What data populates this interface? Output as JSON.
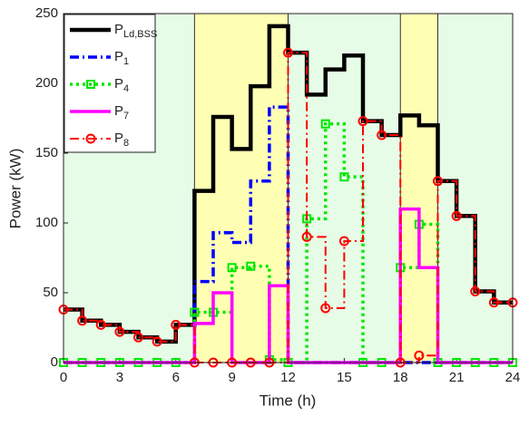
{
  "chart_data": {
    "type": "step",
    "xlabel": "Time (h)",
    "ylabel": "Power (kW)",
    "x": [
      0,
      1,
      2,
      3,
      4,
      5,
      6,
      7,
      8,
      9,
      10,
      11,
      12,
      13,
      14,
      15,
      16,
      17,
      18,
      19,
      20,
      21,
      22,
      23,
      24
    ],
    "xlim": [
      0,
      24
    ],
    "xticks": [
      0,
      3,
      6,
      9,
      12,
      15,
      18,
      21,
      24
    ],
    "ylim": [
      0,
      250
    ],
    "yticks": [
      0,
      50,
      100,
      150,
      200,
      250
    ],
    "background_color": "#e6fce6",
    "highlight_spans": [
      {
        "xlim": [
          7,
          12
        ],
        "color": "#ffffb4"
      },
      {
        "xlim": [
          18,
          20
        ],
        "color": "#ffffb4"
      }
    ],
    "legend": "upper left",
    "series": [
      {
        "name": "PLd,BSS",
        "color": "#000000",
        "linestyle": "solid",
        "width": 4.5,
        "marker": "none",
        "values": [
          38,
          30,
          27,
          22,
          18,
          15,
          27,
          123,
          176,
          153,
          198,
          241,
          222,
          192,
          210,
          220,
          173,
          163,
          177,
          170,
          130,
          105,
          51,
          43,
          43
        ]
      },
      {
        "name": "P1",
        "color": "#0000ff",
        "linestyle": "dashdot",
        "width": 3.5,
        "marker": "none",
        "values": [
          0,
          0,
          0,
          0,
          0,
          0,
          0,
          58,
          93,
          86,
          130,
          183,
          0,
          0,
          0,
          0,
          0,
          0,
          0,
          0,
          0,
          0,
          0,
          0,
          0
        ]
      },
      {
        "name": "P4",
        "color": "#00e600",
        "linestyle": "dotted",
        "width": 3.5,
        "marker": "square",
        "values": [
          0,
          0,
          0,
          0,
          0,
          0,
          0,
          36,
          36,
          68,
          69,
          2,
          0,
          103,
          171,
          133,
          0,
          0,
          68,
          99,
          0,
          0,
          0,
          0,
          0
        ]
      },
      {
        "name": "P7",
        "color": "#ff00ff",
        "linestyle": "solid",
        "width": 3.5,
        "marker": "none",
        "values": [
          0,
          0,
          0,
          0,
          0,
          0,
          0,
          28,
          50,
          0,
          0,
          55,
          0,
          0,
          0,
          0,
          0,
          0,
          110,
          68,
          0,
          0,
          0,
          0,
          0
        ]
      },
      {
        "name": "P8",
        "color": "#ff0000",
        "linestyle": "dashdot",
        "width": 2,
        "marker": "circle",
        "values": [
          38,
          30,
          27,
          22,
          18,
          15,
          27,
          0,
          0,
          0,
          0,
          0,
          222,
          90,
          39,
          87,
          173,
          163,
          0,
          5,
          130,
          105,
          51,
          43,
          43
        ]
      }
    ]
  }
}
